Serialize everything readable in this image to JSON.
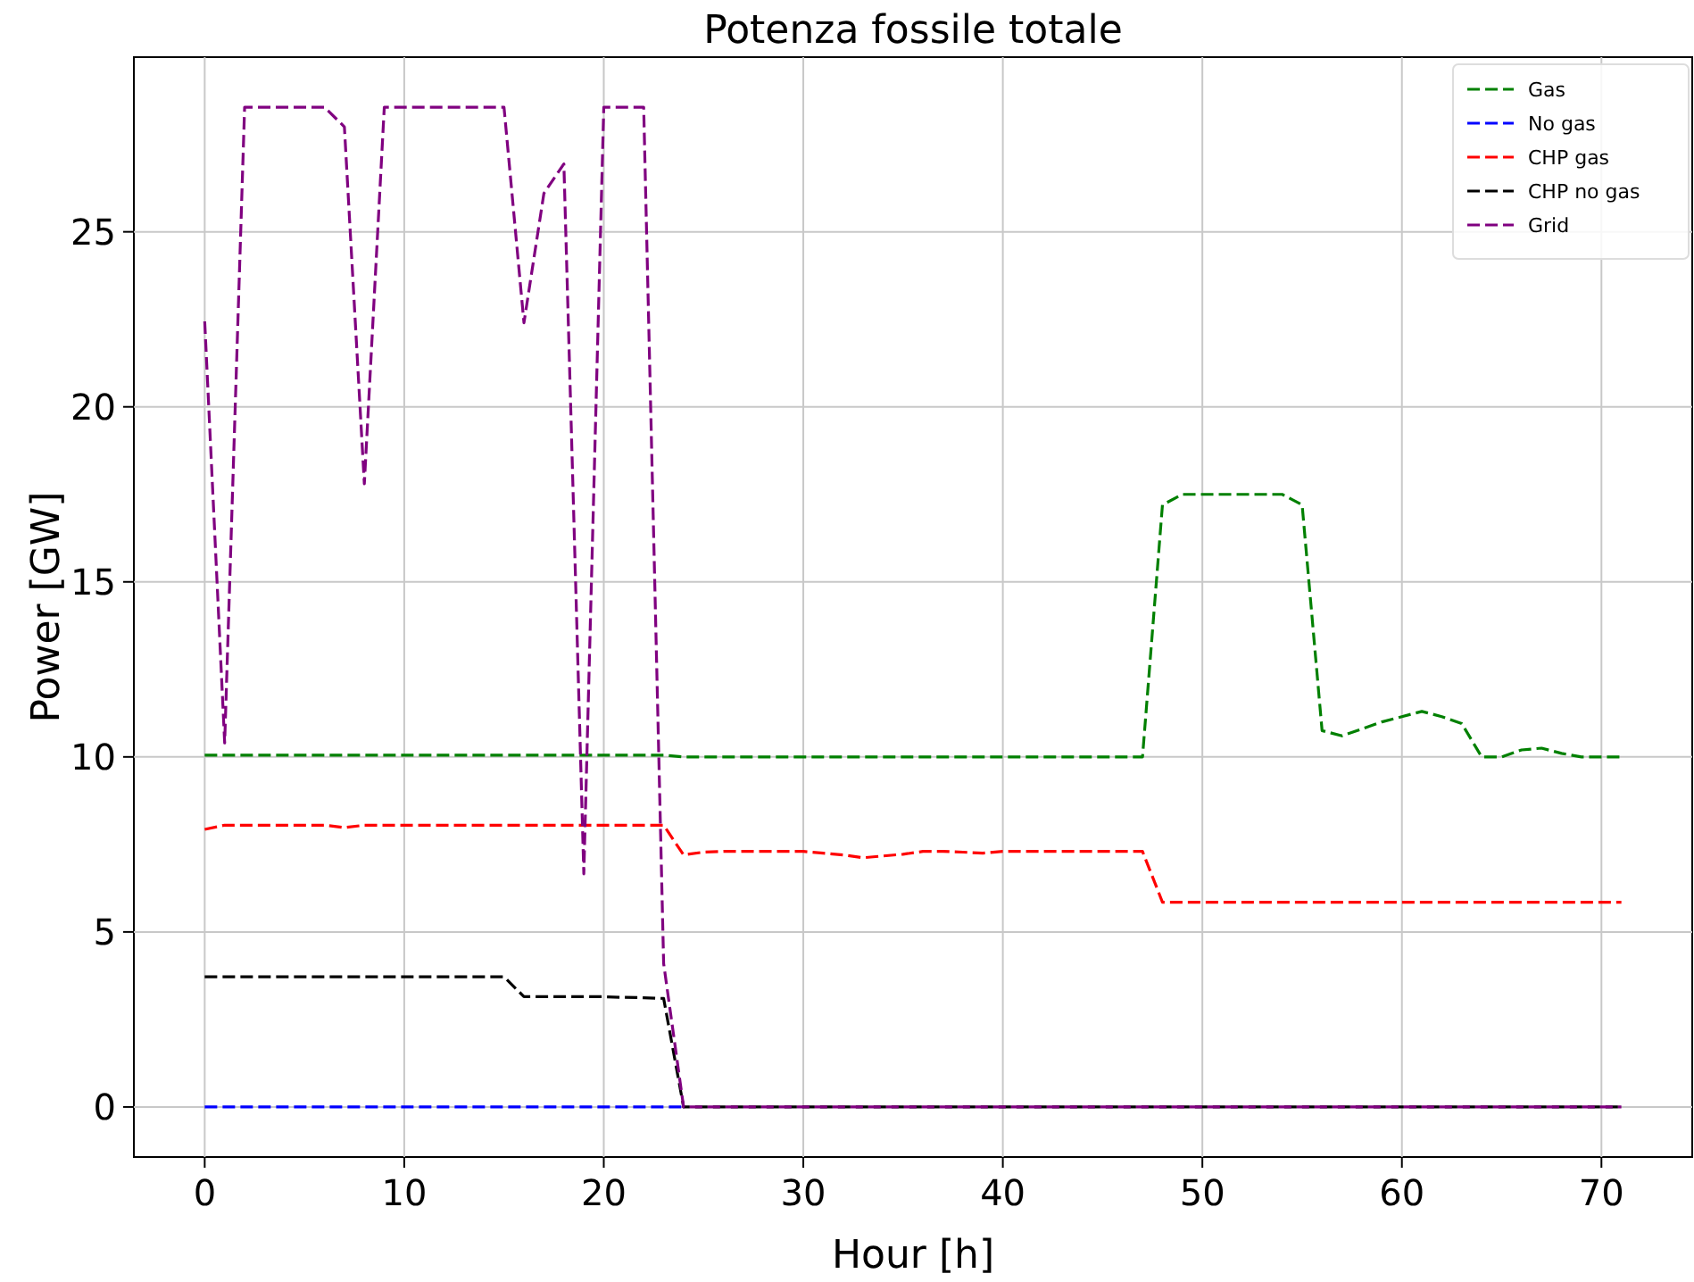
{
  "chart_data": {
    "type": "line",
    "title": "Potenza fossile totale",
    "xlabel": "Hour [h]",
    "ylabel": "Power [GW]",
    "x": [
      0,
      1,
      2,
      3,
      4,
      5,
      6,
      7,
      8,
      9,
      10,
      11,
      12,
      13,
      14,
      15,
      16,
      17,
      18,
      19,
      20,
      21,
      22,
      23,
      24,
      25,
      26,
      27,
      28,
      29,
      30,
      31,
      32,
      33,
      34,
      35,
      36,
      37,
      38,
      39,
      40,
      41,
      42,
      43,
      44,
      45,
      46,
      47,
      48,
      49,
      50,
      51,
      52,
      53,
      54,
      55,
      56,
      57,
      58,
      59,
      60,
      61,
      62,
      63,
      64,
      65,
      66,
      67,
      68,
      69,
      70,
      71
    ],
    "xlim": [
      -3.55,
      74.55
    ],
    "xticks": [
      0,
      10,
      20,
      30,
      40,
      50,
      60,
      70
    ],
    "ylim": [
      -1.43,
      29.99
    ],
    "yticks": [
      0,
      5,
      10,
      15,
      20,
      25
    ],
    "grid": true,
    "legend": "top right",
    "line_style": "dashed",
    "marker": "none",
    "series": [
      {
        "name": "Gas",
        "color": "#008000",
        "values": [
          10.05,
          10.05,
          10.05,
          10.05,
          10.05,
          10.05,
          10.05,
          10.05,
          10.05,
          10.05,
          10.05,
          10.05,
          10.05,
          10.05,
          10.05,
          10.05,
          10.05,
          10.05,
          10.05,
          10.05,
          10.05,
          10.05,
          10.05,
          10.05,
          10,
          10,
          10,
          10,
          10,
          10,
          10,
          10,
          10,
          10,
          10,
          10,
          10,
          10,
          10,
          10,
          10,
          10,
          10,
          10,
          10,
          10,
          10,
          10,
          17.2,
          17.5,
          17.5,
          17.5,
          17.5,
          17.5,
          17.5,
          17.2,
          10.75,
          10.6,
          10.8,
          11,
          11.15,
          11.3,
          11.15,
          10.95,
          10,
          10,
          10.2,
          10.25,
          10.1,
          10,
          10,
          10
        ]
      },
      {
        "name": "No gas",
        "color": "#0000ff",
        "values": [
          0,
          0,
          0,
          0,
          0,
          0,
          0,
          0,
          0,
          0,
          0,
          0,
          0,
          0,
          0,
          0,
          0,
          0,
          0,
          0,
          0,
          0,
          0,
          0,
          0,
          null,
          null,
          null,
          null,
          null,
          null,
          null,
          null,
          null,
          null,
          null,
          null,
          null,
          null,
          null,
          null,
          null,
          null,
          null,
          null,
          null,
          null,
          null,
          null,
          null,
          null,
          null,
          null,
          null,
          null,
          null,
          null,
          null,
          null,
          null,
          null,
          null,
          null,
          null,
          null,
          null,
          null,
          null,
          null,
          null,
          null,
          null
        ]
      },
      {
        "name": "CHP gas",
        "color": "#ff0000",
        "values": [
          7.93,
          8.05,
          8.05,
          8.05,
          8.05,
          8.05,
          8.05,
          7.98,
          8.05,
          8.05,
          8.05,
          8.05,
          8.05,
          8.05,
          8.05,
          8.05,
          8.05,
          8.05,
          8.05,
          8.05,
          8.05,
          8.05,
          8.05,
          8.05,
          7.2,
          7.28,
          7.3,
          7.3,
          7.3,
          7.3,
          7.3,
          7.25,
          7.2,
          7.12,
          7.17,
          7.22,
          7.3,
          7.3,
          7.28,
          7.25,
          7.3,
          7.3,
          7.3,
          7.3,
          7.3,
          7.3,
          7.3,
          7.3,
          5.85,
          5.85,
          5.85,
          5.85,
          5.85,
          5.85,
          5.85,
          5.85,
          5.85,
          5.85,
          5.85,
          5.85,
          5.85,
          5.85,
          5.85,
          5.85,
          5.85,
          5.85,
          5.85,
          5.85,
          5.85,
          5.85,
          5.85,
          5.85
        ]
      },
      {
        "name": "CHP no gas",
        "color": "#000000",
        "values": [
          3.72,
          3.72,
          3.72,
          3.72,
          3.72,
          3.72,
          3.72,
          3.72,
          3.72,
          3.72,
          3.72,
          3.72,
          3.72,
          3.72,
          3.72,
          3.72,
          3.15,
          3.15,
          3.15,
          3.15,
          3.15,
          3.13,
          3.12,
          3.1,
          0,
          0,
          0,
          0,
          0,
          0,
          0,
          0,
          0,
          0,
          0,
          0,
          0,
          0,
          0,
          0,
          0,
          0,
          0,
          0,
          0,
          0,
          0,
          0,
          0,
          0,
          0,
          0,
          0,
          0,
          0,
          0,
          0,
          0,
          0,
          0,
          0,
          0,
          0,
          0,
          0,
          0,
          0,
          0,
          0,
          0,
          0,
          0
        ]
      },
      {
        "name": "Grid",
        "color": "#800080",
        "values": [
          22.44,
          10.4,
          28.56,
          28.56,
          28.56,
          28.56,
          28.56,
          28,
          17.8,
          28.56,
          28.56,
          28.56,
          28.56,
          28.56,
          28.56,
          28.56,
          22.4,
          26.1,
          26.94,
          6.66,
          28.56,
          28.56,
          28.56,
          4.1,
          0,
          0,
          0,
          0,
          0,
          0,
          0,
          0,
          0,
          0,
          0,
          0,
          0,
          0,
          0,
          0,
          0,
          0,
          0,
          0,
          0,
          0,
          0,
          0,
          0,
          0,
          0,
          0,
          0,
          0,
          0,
          0,
          0,
          0,
          0,
          0,
          0,
          0,
          0,
          0,
          0,
          0,
          0,
          0,
          0,
          0,
          0,
          0
        ]
      }
    ]
  }
}
